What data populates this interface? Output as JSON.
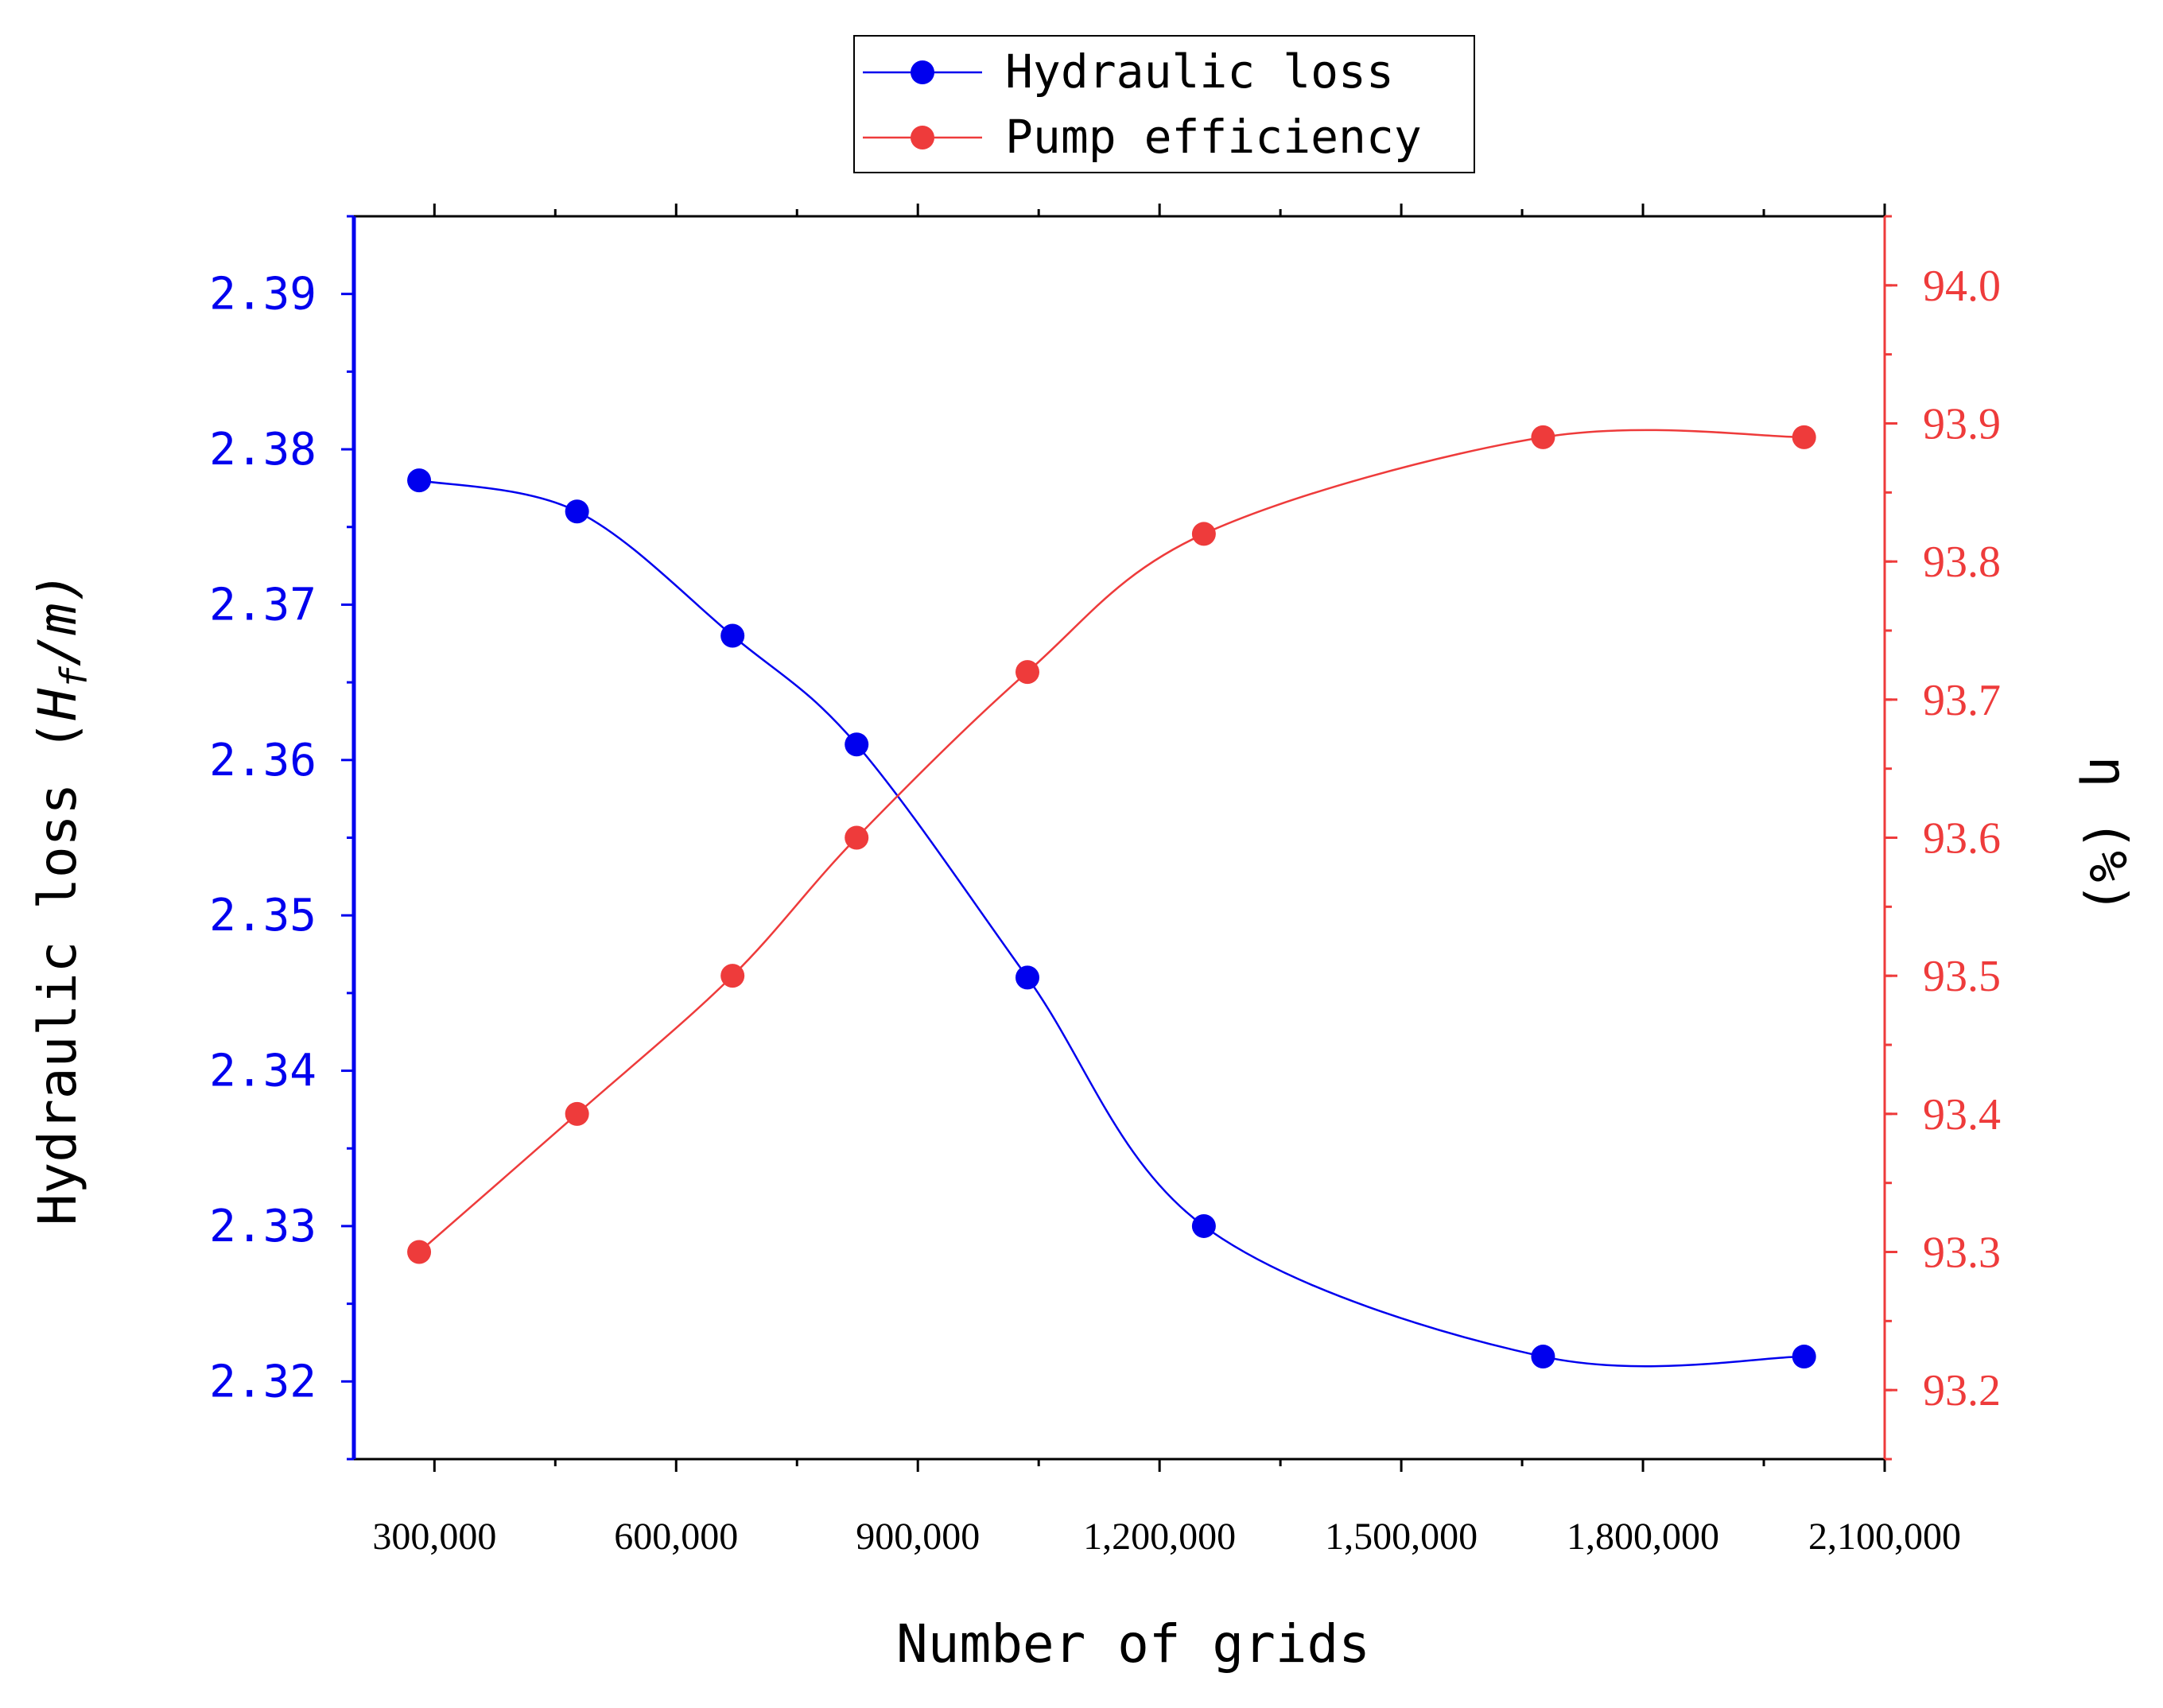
{
  "chart_data": {
    "type": "line",
    "title": "",
    "xlabel": "Number of grids",
    "ylabel_left": {
      "prefix": "Hydraulic loss (",
      "var": "H",
      "sub": "f",
      "suffix": "/m)",
      "full": "Hydraulic loss (Hf/m)"
    },
    "ylabel_right": "η (%)",
    "x_ticks": [
      300000,
      600000,
      900000,
      1200000,
      1500000,
      1800000,
      2100000
    ],
    "x_tick_labels": [
      "300,000",
      "600,000",
      "900,000",
      "1,200,000",
      "1,500,000",
      "1,800,000",
      "2,100,000"
    ],
    "xlim": [
      200000,
      2100000
    ],
    "y_left_ticks": [
      2.32,
      2.33,
      2.34,
      2.35,
      2.36,
      2.37,
      2.38,
      2.39
    ],
    "y_left_tick_labels": [
      "2.32",
      "2.33",
      "2.34",
      "2.35",
      "2.36",
      "2.37",
      "2.38",
      "2.39"
    ],
    "ylim_left": [
      2.315,
      2.395
    ],
    "y_right_ticks": [
      93.2,
      93.3,
      93.4,
      93.5,
      93.6,
      93.7,
      93.8,
      93.9,
      94.0
    ],
    "y_right_tick_labels": [
      "93.2",
      "93.3",
      "93.4",
      "93.5",
      "93.6",
      "93.7",
      "93.8",
      "93.9",
      "94.0"
    ],
    "ylim_right": [
      93.15,
      94.05
    ],
    "series": [
      {
        "name": "Hydraulic loss",
        "axis": "left",
        "color": "#0000ee",
        "x": [
          281000,
          477000,
          670000,
          824000,
          1036000,
          1255000,
          1676000,
          2000000
        ],
        "y": [
          2.378,
          2.376,
          2.368,
          2.361,
          2.346,
          2.33,
          2.3216,
          2.3216
        ]
      },
      {
        "name": "Pump efficiency",
        "axis": "right",
        "color": "#ee3b3b",
        "x": [
          281000,
          477000,
          670000,
          824000,
          1036000,
          1255000,
          1676000,
          2000000
        ],
        "y": [
          93.3,
          93.4,
          93.5,
          93.6,
          93.72,
          93.82,
          93.89,
          93.89
        ]
      }
    ],
    "legend": {
      "position": "top-center",
      "entries": [
        "Hydraulic loss",
        "Pump efficiency"
      ]
    },
    "grid": false
  }
}
